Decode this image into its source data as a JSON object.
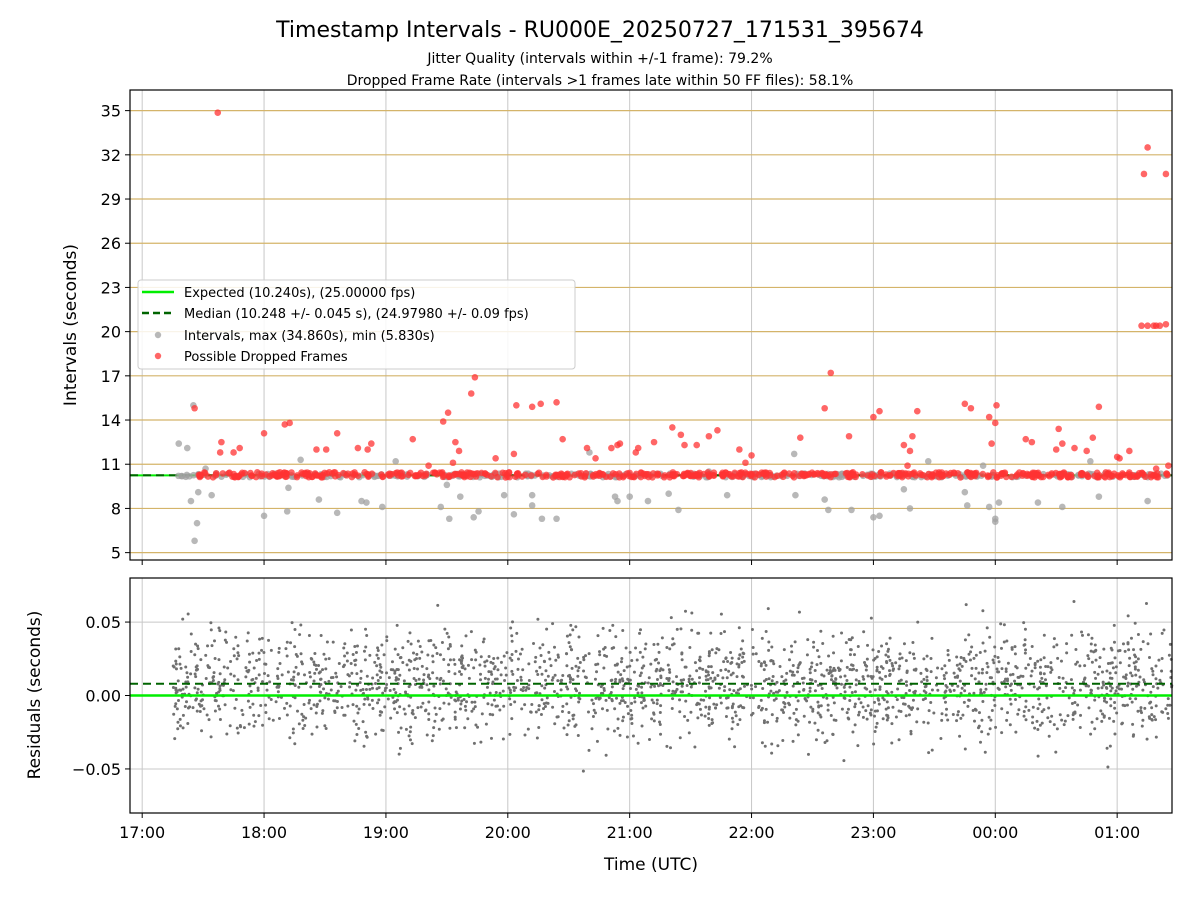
{
  "chart_data": [
    {
      "type": "scatter",
      "title": "Timestamp Intervals - RU000E_20250727_171531_395674",
      "subtitle_lines": [
        "Jitter Quality (intervals within +/-1 frame): 79.2%",
        "Dropped Frame Rate (intervals >1 frames late within 50 FF files): 58.1%"
      ],
      "xlabel": "",
      "ylabel": "Intervals (seconds)",
      "ylim": [
        4.5,
        36.4
      ],
      "yticks": [
        5,
        8,
        11,
        14,
        17,
        20,
        23,
        26,
        29,
        32,
        35
      ],
      "ytick_labels": [
        "5",
        "8",
        "11",
        "14",
        "17",
        "20",
        "23",
        "26",
        "29",
        "32",
        "35"
      ],
      "x_axis": "time UTC (hours, 17.0 = 17:00; 25.0 = 01:00 next day)",
      "xlim": [
        16.9,
        25.45
      ],
      "grid": true,
      "horizontal_grid_color": "#d4b46a",
      "legend_placement": "center-left",
      "legend": [
        {
          "label": "Expected (10.240s), (25.00000 fps)",
          "kind": "line",
          "color": "#00ee00"
        },
        {
          "label": "Median (10.248 +/- 0.045 s), (24.97980 +/- 0.09 fps)",
          "kind": "dashed-line",
          "color": "#006400"
        },
        {
          "label": "Intervals, max (34.860s), min (5.830s)",
          "kind": "marker",
          "color": "#a0a0a0"
        },
        {
          "label": "Possible Dropped Frames",
          "kind": "marker",
          "color": "#ff3333"
        }
      ],
      "expected_line": 10.24,
      "median_line": 10.248,
      "series": [
        {
          "name": "Intervals, max (34.860s), min (5.830s)",
          "color": "#a0a0a0",
          "baseline": 10.24,
          "x_range": [
            17.25,
            25.45
          ],
          "outliers": [
            [
              17.3,
              12.4
            ],
            [
              17.37,
              12.1
            ],
            [
              17.4,
              8.5
            ],
            [
              17.42,
              15.0
            ],
            [
              17.43,
              5.8
            ],
            [
              17.45,
              7.0
            ],
            [
              17.46,
              9.1
            ],
            [
              17.52,
              10.7
            ],
            [
              17.57,
              8.9
            ],
            [
              18.0,
              7.5
            ],
            [
              18.19,
              7.8
            ],
            [
              18.2,
              9.4
            ],
            [
              18.3,
              11.3
            ],
            [
              18.45,
              8.6
            ],
            [
              18.6,
              7.7
            ],
            [
              18.8,
              8.5
            ],
            [
              18.84,
              8.4
            ],
            [
              18.97,
              8.1
            ],
            [
              19.08,
              11.2
            ],
            [
              19.45,
              8.1
            ],
            [
              19.5,
              9.6
            ],
            [
              19.52,
              7.3
            ],
            [
              19.61,
              8.8
            ],
            [
              19.72,
              7.4
            ],
            [
              19.76,
              7.8
            ],
            [
              19.97,
              8.9
            ],
            [
              20.05,
              7.6
            ],
            [
              20.2,
              8.9
            ],
            [
              20.2,
              8.2
            ],
            [
              20.28,
              7.3
            ],
            [
              20.4,
              7.3
            ],
            [
              20.67,
              11.8
            ],
            [
              20.88,
              8.8
            ],
            [
              20.9,
              8.5
            ],
            [
              21.0,
              8.8
            ],
            [
              21.15,
              8.5
            ],
            [
              21.32,
              9.0
            ],
            [
              21.4,
              7.9
            ],
            [
              21.65,
              10.5
            ],
            [
              21.8,
              8.9
            ],
            [
              22.35,
              11.7
            ],
            [
              22.36,
              8.9
            ],
            [
              22.6,
              8.6
            ],
            [
              22.63,
              7.9
            ],
            [
              22.82,
              7.9
            ],
            [
              23.0,
              7.4
            ],
            [
              23.05,
              7.5
            ],
            [
              23.25,
              9.3
            ],
            [
              23.3,
              8.0
            ],
            [
              23.45,
              11.2
            ],
            [
              23.75,
              9.1
            ],
            [
              23.77,
              8.2
            ],
            [
              23.9,
              10.9
            ],
            [
              23.95,
              8.1
            ],
            [
              24.0,
              7.3
            ],
            [
              24.0,
              7.1
            ],
            [
              24.03,
              8.4
            ],
            [
              24.35,
              8.4
            ],
            [
              24.55,
              8.1
            ],
            [
              24.78,
              11.2
            ],
            [
              24.85,
              8.8
            ],
            [
              25.25,
              8.5
            ]
          ]
        },
        {
          "name": "Possible Dropped Frames",
          "color": "#ff3333",
          "baseline": 10.28,
          "x_range": [
            17.45,
            25.45
          ],
          "outliers": [
            [
              17.62,
              34.86
            ],
            [
              17.43,
              14.8
            ],
            [
              17.65,
              12.5
            ],
            [
              17.64,
              11.8
            ],
            [
              17.75,
              11.8
            ],
            [
              17.8,
              12.1
            ],
            [
              18.0,
              13.1
            ],
            [
              18.17,
              13.7
            ],
            [
              18.21,
              13.8
            ],
            [
              18.43,
              12.0
            ],
            [
              18.51,
              12.0
            ],
            [
              18.6,
              13.1
            ],
            [
              18.77,
              12.1
            ],
            [
              18.85,
              12.0
            ],
            [
              18.88,
              12.4
            ],
            [
              19.22,
              12.7
            ],
            [
              19.35,
              10.9
            ],
            [
              19.47,
              13.9
            ],
            [
              19.51,
              14.5
            ],
            [
              19.55,
              11.1
            ],
            [
              19.57,
              12.5
            ],
            [
              19.6,
              11.9
            ],
            [
              19.7,
              15.8
            ],
            [
              19.73,
              16.9
            ],
            [
              19.9,
              11.4
            ],
            [
              20.05,
              11.7
            ],
            [
              20.07,
              15.0
            ],
            [
              20.2,
              14.9
            ],
            [
              20.27,
              15.1
            ],
            [
              20.4,
              15.2
            ],
            [
              20.45,
              12.7
            ],
            [
              20.65,
              12.1
            ],
            [
              20.72,
              11.4
            ],
            [
              20.85,
              12.1
            ],
            [
              20.9,
              12.3
            ],
            [
              20.92,
              12.4
            ],
            [
              21.05,
              11.8
            ],
            [
              21.07,
              12.1
            ],
            [
              21.2,
              12.5
            ],
            [
              21.35,
              13.5
            ],
            [
              21.42,
              13.0
            ],
            [
              21.45,
              12.3
            ],
            [
              21.55,
              12.3
            ],
            [
              21.65,
              12.9
            ],
            [
              21.72,
              13.3
            ],
            [
              21.9,
              12.0
            ],
            [
              21.95,
              11.1
            ],
            [
              22.0,
              11.6
            ],
            [
              22.4,
              12.8
            ],
            [
              22.6,
              14.8
            ],
            [
              22.65,
              17.2
            ],
            [
              22.8,
              12.9
            ],
            [
              23.0,
              14.2
            ],
            [
              23.05,
              14.6
            ],
            [
              23.25,
              12.3
            ],
            [
              23.28,
              10.9
            ],
            [
              23.3,
              11.9
            ],
            [
              23.32,
              12.9
            ],
            [
              23.36,
              14.6
            ],
            [
              23.75,
              15.1
            ],
            [
              23.8,
              14.8
            ],
            [
              23.95,
              14.2
            ],
            [
              23.97,
              12.4
            ],
            [
              24.0,
              13.8
            ],
            [
              24.01,
              15.0
            ],
            [
              24.25,
              12.7
            ],
            [
              24.3,
              12.5
            ],
            [
              24.5,
              12.0
            ],
            [
              24.52,
              13.4
            ],
            [
              24.55,
              12.4
            ],
            [
              24.65,
              12.1
            ],
            [
              24.75,
              11.9
            ],
            [
              24.8,
              12.8
            ],
            [
              24.85,
              14.9
            ],
            [
              25.0,
              11.5
            ],
            [
              25.02,
              11.4
            ],
            [
              25.1,
              11.9
            ],
            [
              25.2,
              20.4
            ],
            [
              25.25,
              20.4
            ],
            [
              25.3,
              20.4
            ],
            [
              25.32,
              20.4
            ],
            [
              25.35,
              20.4
            ],
            [
              25.4,
              20.5
            ],
            [
              25.22,
              30.7
            ],
            [
              25.25,
              32.5
            ],
            [
              25.4,
              30.7
            ],
            [
              25.32,
              10.7
            ],
            [
              25.42,
              10.9
            ]
          ]
        }
      ]
    },
    {
      "type": "scatter",
      "title": "",
      "xlabel": "Time (UTC)",
      "ylabel": "Residuals (seconds)",
      "ylim": [
        -0.08,
        0.08
      ],
      "yticks": [
        -0.05,
        0.0,
        0.05
      ],
      "ytick_labels": [
        "−0.05",
        "0.00",
        "0.05"
      ],
      "x_axis": "time UTC (hours, 17.0 = 17:00; 25.0 = 01:00 next day)",
      "xlim": [
        16.9,
        25.45
      ],
      "xticks": [
        17,
        18,
        19,
        20,
        21,
        22,
        23,
        24,
        25
      ],
      "xtick_labels": [
        "17:00",
        "18:00",
        "19:00",
        "20:00",
        "21:00",
        "22:00",
        "23:00",
        "00:00",
        "01:00"
      ],
      "grid": true,
      "expected_line": 0.0,
      "median_line": 0.008,
      "series": [
        {
          "name": "",
          "color": "#707070",
          "x_range": [
            17.25,
            25.45
          ],
          "center": 0.008,
          "spread": 0.026,
          "count": 2200
        }
      ]
    }
  ]
}
